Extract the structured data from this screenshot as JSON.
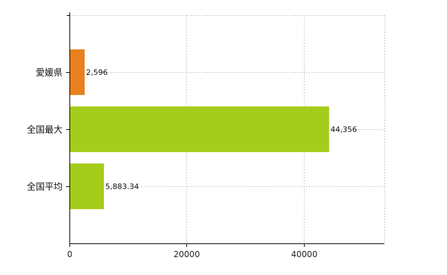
{
  "chart_data": {
    "type": "bar",
    "orientation": "horizontal",
    "categories": [
      "愛媛県",
      "全国最大",
      "全国平均"
    ],
    "values": [
      2596,
      44356,
      5883.34
    ],
    "value_labels": [
      "2,596",
      "44,356",
      "5,883.34"
    ],
    "bar_colors": [
      "#e8801e",
      "#a5cc1a",
      "#a5cc1a"
    ],
    "xlim": [
      0,
      53800
    ],
    "x_ticks": [
      0,
      20000,
      40000
    ],
    "x_tick_labels": [
      "0",
      "20000",
      "40000"
    ],
    "grid": true,
    "title": "",
    "xlabel": "",
    "ylabel": ""
  }
}
